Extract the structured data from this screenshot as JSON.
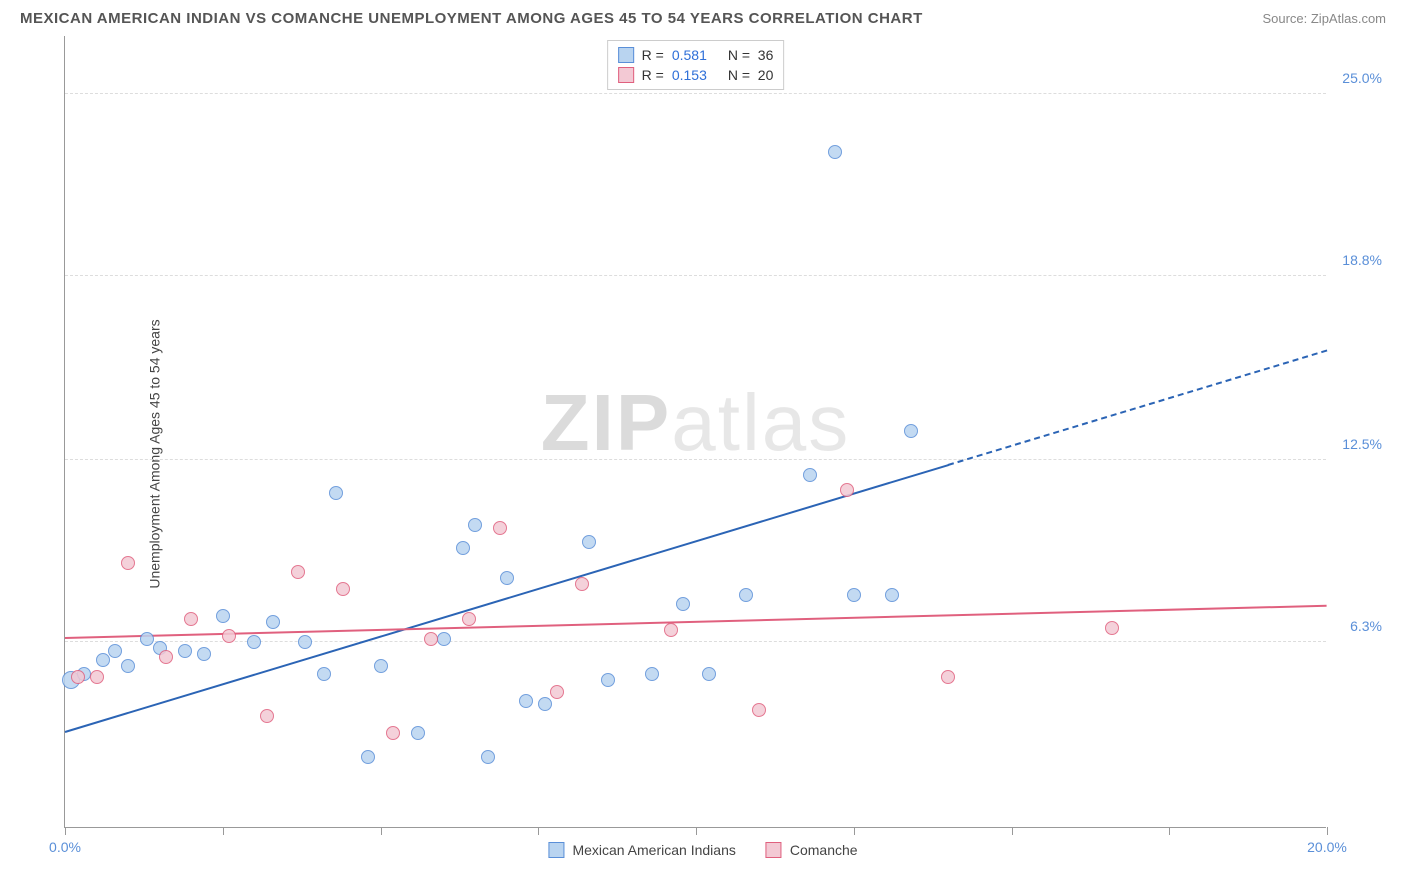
{
  "title": "MEXICAN AMERICAN INDIAN VS COMANCHE UNEMPLOYMENT AMONG AGES 45 TO 54 YEARS CORRELATION CHART",
  "source": "Source: ZipAtlas.com",
  "ylabel": "Unemployment Among Ages 45 to 54 years",
  "watermark_left": "ZIP",
  "watermark_right": "atlas",
  "chart": {
    "type": "scatter",
    "xlim": [
      0,
      20
    ],
    "ylim": [
      0,
      27
    ],
    "background_color": "#ffffff",
    "grid_color": "#dddddd",
    "axis_color": "#999999",
    "yticks": [
      {
        "v": 6.3,
        "label": "6.3%",
        "color": "#5a8fd8"
      },
      {
        "v": 12.5,
        "label": "12.5%",
        "color": "#5a8fd8"
      },
      {
        "v": 18.8,
        "label": "18.8%",
        "color": "#5a8fd8"
      },
      {
        "v": 25.0,
        "label": "25.0%",
        "color": "#5a8fd8"
      }
    ],
    "xticks": [
      {
        "v": 0,
        "label": "0.0%",
        "color": "#5a8fd8"
      },
      {
        "v": 2.5,
        "label": ""
      },
      {
        "v": 5.0,
        "label": ""
      },
      {
        "v": 7.5,
        "label": ""
      },
      {
        "v": 10.0,
        "label": ""
      },
      {
        "v": 12.5,
        "label": ""
      },
      {
        "v": 15.0,
        "label": ""
      },
      {
        "v": 17.5,
        "label": ""
      },
      {
        "v": 20.0,
        "label": "20.0%",
        "color": "#5a8fd8"
      }
    ],
    "series": [
      {
        "name": "Mexican American Indians",
        "fill": "#b9d4f0",
        "stroke": "#5a8fd8",
        "marker_size": 14,
        "R": "0.581",
        "N": "36",
        "trend": {
          "x1": 0,
          "y1": 3.2,
          "x2": 20,
          "y2": 16.2,
          "solid_to_x": 14.0,
          "color": "#2b64b5",
          "width": 2
        },
        "points": [
          {
            "x": 0.1,
            "y": 5.0,
            "r": 18
          },
          {
            "x": 0.3,
            "y": 5.2
          },
          {
            "x": 0.6,
            "y": 5.7
          },
          {
            "x": 0.8,
            "y": 6.0
          },
          {
            "x": 1.0,
            "y": 5.5
          },
          {
            "x": 1.3,
            "y": 6.4
          },
          {
            "x": 1.5,
            "y": 6.1
          },
          {
            "x": 1.9,
            "y": 6.0
          },
          {
            "x": 2.2,
            "y": 5.9
          },
          {
            "x": 2.5,
            "y": 7.2
          },
          {
            "x": 3.0,
            "y": 6.3
          },
          {
            "x": 3.3,
            "y": 7.0
          },
          {
            "x": 3.8,
            "y": 6.3
          },
          {
            "x": 4.1,
            "y": 5.2
          },
          {
            "x": 4.3,
            "y": 11.4
          },
          {
            "x": 4.8,
            "y": 2.4
          },
          {
            "x": 5.0,
            "y": 5.5
          },
          {
            "x": 5.6,
            "y": 3.2
          },
          {
            "x": 6.0,
            "y": 6.4
          },
          {
            "x": 6.3,
            "y": 9.5
          },
          {
            "x": 6.5,
            "y": 10.3
          },
          {
            "x": 6.7,
            "y": 2.4
          },
          {
            "x": 7.0,
            "y": 8.5
          },
          {
            "x": 7.3,
            "y": 4.3
          },
          {
            "x": 7.6,
            "y": 4.2
          },
          {
            "x": 8.3,
            "y": 9.7
          },
          {
            "x": 8.6,
            "y": 5.0
          },
          {
            "x": 9.3,
            "y": 5.2
          },
          {
            "x": 9.8,
            "y": 7.6
          },
          {
            "x": 10.2,
            "y": 5.2
          },
          {
            "x": 10.8,
            "y": 7.9
          },
          {
            "x": 11.8,
            "y": 12.0
          },
          {
            "x": 12.2,
            "y": 23.0
          },
          {
            "x": 12.5,
            "y": 7.9
          },
          {
            "x": 13.1,
            "y": 7.9
          },
          {
            "x": 13.4,
            "y": 13.5
          }
        ]
      },
      {
        "name": "Comanche",
        "fill": "#f3c9d4",
        "stroke": "#e0607e",
        "marker_size": 14,
        "R": "0.153",
        "N": "20",
        "trend": {
          "x1": 0,
          "y1": 6.4,
          "x2": 20,
          "y2": 7.5,
          "solid_to_x": 20,
          "color": "#e0607e",
          "width": 2
        },
        "points": [
          {
            "x": 0.2,
            "y": 5.1
          },
          {
            "x": 0.5,
            "y": 5.1
          },
          {
            "x": 1.0,
            "y": 9.0
          },
          {
            "x": 1.6,
            "y": 5.8
          },
          {
            "x": 2.0,
            "y": 7.1
          },
          {
            "x": 2.6,
            "y": 6.5
          },
          {
            "x": 3.2,
            "y": 3.8
          },
          {
            "x": 3.7,
            "y": 8.7
          },
          {
            "x": 4.4,
            "y": 8.1
          },
          {
            "x": 5.2,
            "y": 3.2
          },
          {
            "x": 5.8,
            "y": 6.4
          },
          {
            "x": 6.4,
            "y": 7.1
          },
          {
            "x": 6.9,
            "y": 10.2
          },
          {
            "x": 7.8,
            "y": 4.6
          },
          {
            "x": 8.2,
            "y": 8.3
          },
          {
            "x": 9.6,
            "y": 6.7
          },
          {
            "x": 11.0,
            "y": 4.0
          },
          {
            "x": 12.4,
            "y": 11.5
          },
          {
            "x": 14.0,
            "y": 5.1
          },
          {
            "x": 16.6,
            "y": 6.8
          }
        ]
      }
    ]
  },
  "legend_bottom": [
    {
      "label": "Mexican American Indians",
      "fill": "#b9d4f0",
      "stroke": "#5a8fd8"
    },
    {
      "label": "Comanche",
      "fill": "#f3c9d4",
      "stroke": "#e0607e"
    }
  ]
}
